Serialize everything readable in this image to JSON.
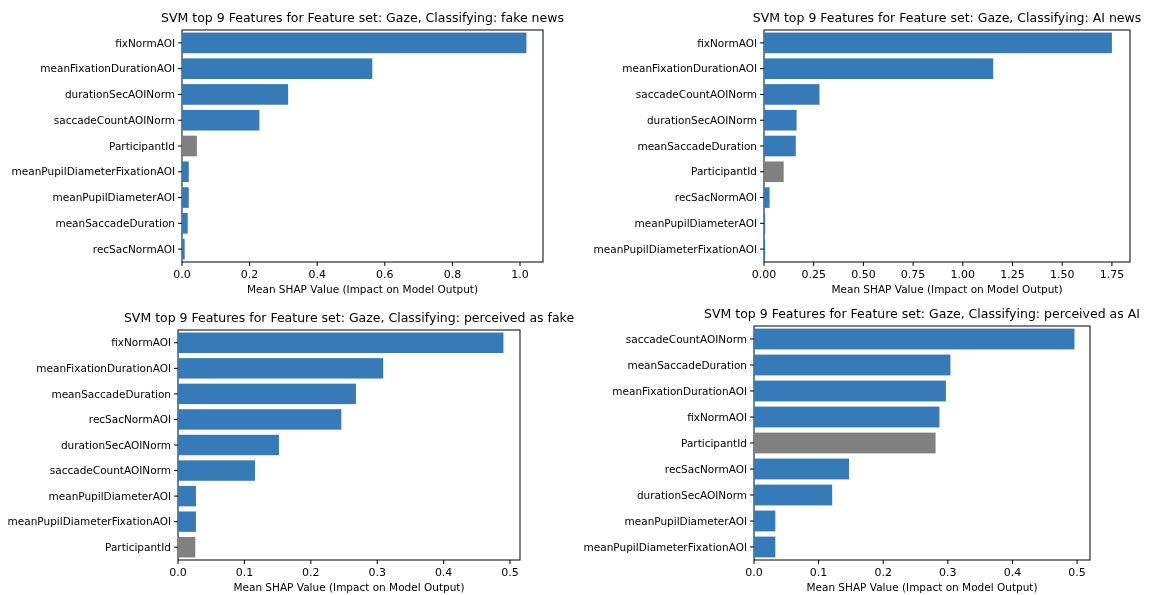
{
  "chart_data": [
    {
      "type": "bar",
      "orientation": "horizontal",
      "title": "SVM top 9 Features for Feature set: Gaze, Classifying: fake news",
      "xlabel": "Mean SHAP Value (Impact on Model Output)",
      "categories": [
        "fixNormAOI",
        "meanFixationDurationAOI",
        "durationSecAOINorm",
        "saccadeCountAOINorm",
        "ParticipantId",
        "meanPupilDiameterFixationAOI",
        "meanPupilDiameterAOI",
        "meanSaccadeDuration",
        "recSacNormAOI"
      ],
      "values": [
        1.019,
        0.563,
        0.314,
        0.229,
        0.044,
        0.02,
        0.02,
        0.017,
        0.008
      ],
      "colors": [
        "#367bb7",
        "#367bb7",
        "#367bb7",
        "#367bb7",
        "#808080",
        "#367bb7",
        "#367bb7",
        "#367bb7",
        "#367bb7"
      ],
      "xlim": [
        0,
        1.068
      ],
      "xticks": [
        {
          "value": 0,
          "label": "0.0"
        },
        {
          "value": 0.2,
          "label": "0.2"
        },
        {
          "value": 0.4,
          "label": "0.4"
        },
        {
          "value": 0.6,
          "label": "0.6"
        },
        {
          "value": 0.8,
          "label": "0.8"
        },
        {
          "value": 1,
          "label": "1.0"
        }
      ]
    },
    {
      "type": "bar",
      "orientation": "horizontal",
      "title": "SVM top 9 Features for Feature set: Gaze, Classifying: AI news",
      "xlabel": "Mean SHAP Value (Impact on Model Output)",
      "categories": [
        "fixNormAOI",
        "meanFixationDurationAOI",
        "saccadeCountAOINorm",
        "durationSecAOINorm",
        "meanSaccadeDuration",
        "ParticipantId",
        "recSacNormAOI",
        "meanPupilDiameterAOI",
        "meanPupilDiameterFixationAOI"
      ],
      "values": [
        1.75,
        1.153,
        0.279,
        0.164,
        0.16,
        0.099,
        0.028,
        0.006,
        0.006
      ],
      "colors": [
        "#367bb7",
        "#367bb7",
        "#367bb7",
        "#367bb7",
        "#367bb7",
        "#808080",
        "#367bb7",
        "#367bb7",
        "#367bb7"
      ],
      "xlim": [
        0,
        1.841
      ],
      "xticks": [
        {
          "value": 0,
          "label": "0.00"
        },
        {
          "value": 0.25,
          "label": "0.25"
        },
        {
          "value": 0.5,
          "label": "0.50"
        },
        {
          "value": 0.75,
          "label": "0.75"
        },
        {
          "value": 1,
          "label": "1.00"
        },
        {
          "value": 1.25,
          "label": "1.25"
        },
        {
          "value": 1.5,
          "label": "1.50"
        },
        {
          "value": 1.75,
          "label": "1.75"
        }
      ]
    },
    {
      "type": "bar",
      "orientation": "horizontal",
      "title": "SVM top 9 Features for Feature set: Gaze, Classifying: perceived as fake",
      "xlabel": "Mean SHAP Value (Impact on Model Output)",
      "categories": [
        "fixNormAOI",
        "meanFixationDurationAOI",
        "meanSaccadeDuration",
        "recSacNormAOI",
        "durationSecAOINorm",
        "saccadeCountAOINorm",
        "meanPupilDiameterAOI",
        "meanPupilDiameterFixationAOI",
        "ParticipantId"
      ],
      "values": [
        0.49,
        0.309,
        0.268,
        0.246,
        0.152,
        0.116,
        0.027,
        0.027,
        0.026
      ],
      "colors": [
        "#367bb7",
        "#367bb7",
        "#367bb7",
        "#367bb7",
        "#367bb7",
        "#367bb7",
        "#367bb7",
        "#367bb7",
        "#808080"
      ],
      "xlim": [
        0,
        0.515
      ],
      "xticks": [
        {
          "value": 0,
          "label": "0.0"
        },
        {
          "value": 0.1,
          "label": "0.1"
        },
        {
          "value": 0.2,
          "label": "0.2"
        },
        {
          "value": 0.3,
          "label": "0.3"
        },
        {
          "value": 0.4,
          "label": "0.4"
        },
        {
          "value": 0.5,
          "label": "0.5"
        }
      ]
    },
    {
      "type": "bar",
      "orientation": "horizontal",
      "title": "SVM top 9 Features for Feature set: Gaze, Classifying: perceived as AI",
      "xlabel": "Mean SHAP Value (Impact on Model Output)",
      "categories": [
        "saccadeCountAOINorm",
        "meanSaccadeDuration",
        "meanFixationDurationAOI",
        "fixNormAOI",
        "ParticipantId",
        "recSacNormAOI",
        "durationSecAOINorm",
        "meanPupilDiameterAOI",
        "meanPupilDiameterFixationAOI"
      ],
      "values": [
        0.496,
        0.304,
        0.297,
        0.287,
        0.281,
        0.147,
        0.121,
        0.033,
        0.033
      ],
      "colors": [
        "#367bb7",
        "#367bb7",
        "#367bb7",
        "#367bb7",
        "#808080",
        "#367bb7",
        "#367bb7",
        "#367bb7",
        "#367bb7"
      ],
      "xlim": [
        0,
        0.52
      ],
      "xticks": [
        {
          "value": 0,
          "label": "0.0"
        },
        {
          "value": 0.1,
          "label": "0.1"
        },
        {
          "value": 0.2,
          "label": "0.2"
        },
        {
          "value": 0.3,
          "label": "0.3"
        },
        {
          "value": 0.4,
          "label": "0.4"
        },
        {
          "value": 0.5,
          "label": "0.5"
        }
      ]
    }
  ]
}
